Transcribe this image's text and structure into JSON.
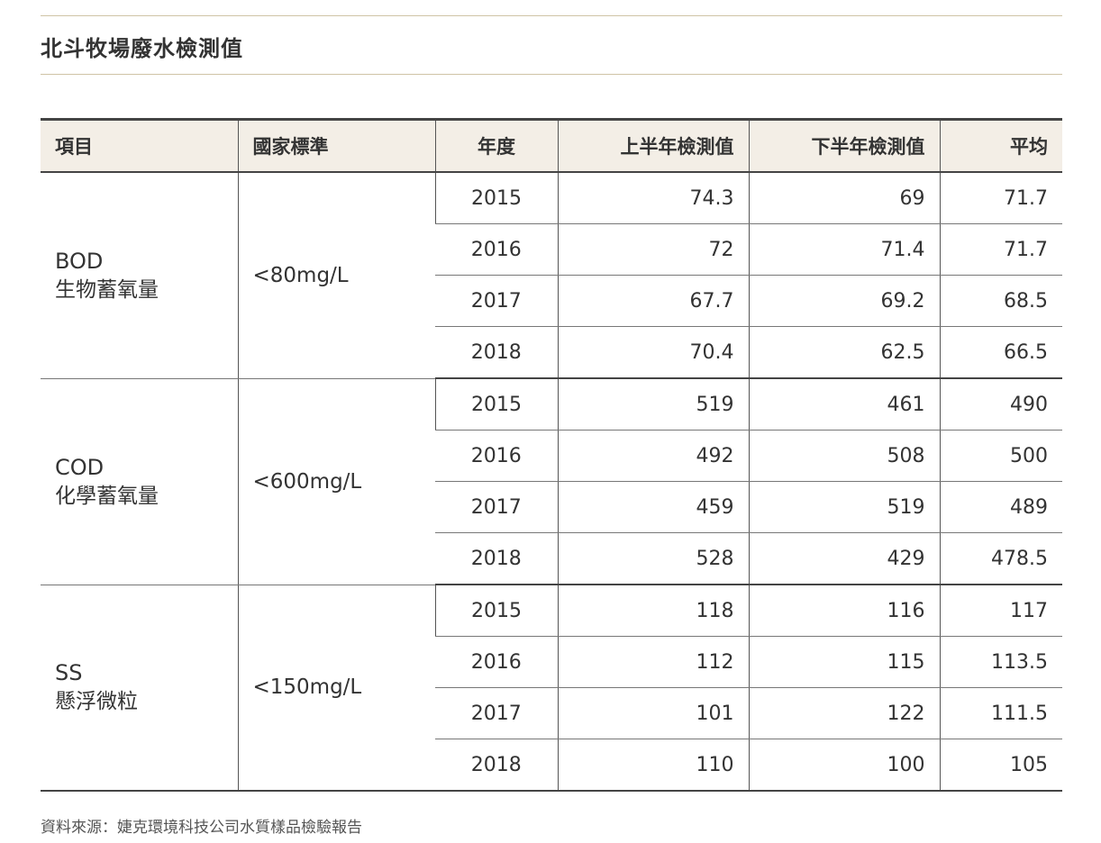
{
  "title": "北斗牧場廢水檢測值",
  "headers": [
    "項目",
    "國家標準",
    "年度",
    "上半年檢測值",
    "下半年檢測值",
    "平均"
  ],
  "groups": [
    {
      "code": "BOD",
      "name": "生物蓄氧量",
      "standard": "<80mg/L",
      "rows": [
        {
          "year": "2015",
          "h1": "74.3",
          "h2": "69",
          "avg": "71.7"
        },
        {
          "year": "2016",
          "h1": "72",
          "h2": "71.4",
          "avg": "71.7"
        },
        {
          "year": "2017",
          "h1": "67.7",
          "h2": "69.2",
          "avg": "68.5"
        },
        {
          "year": "2018",
          "h1": "70.4",
          "h2": "62.5",
          "avg": "66.5"
        }
      ]
    },
    {
      "code": "COD",
      "name": "化學蓄氧量",
      "standard": "<600mg/L",
      "rows": [
        {
          "year": "2015",
          "h1": "519",
          "h2": "461",
          "avg": "490"
        },
        {
          "year": "2016",
          "h1": "492",
          "h2": "508",
          "avg": "500"
        },
        {
          "year": "2017",
          "h1": "459",
          "h2": "519",
          "avg": "489"
        },
        {
          "year": "2018",
          "h1": "528",
          "h2": "429",
          "avg": "478.5"
        }
      ]
    },
    {
      "code": "SS",
      "name": "懸浮微粒",
      "standard": "<150mg/L",
      "rows": [
        {
          "year": "2015",
          "h1": "118",
          "h2": "116",
          "avg": "117"
        },
        {
          "year": "2016",
          "h1": "112",
          "h2": "115",
          "avg": "113.5"
        },
        {
          "year": "2017",
          "h1": "101",
          "h2": "122",
          "avg": "111.5"
        },
        {
          "year": "2018",
          "h1": "110",
          "h2": "100",
          "avg": "105"
        }
      ]
    }
  ],
  "source": "資料來源：婕克環境科技公司水質樣品檢驗報告"
}
